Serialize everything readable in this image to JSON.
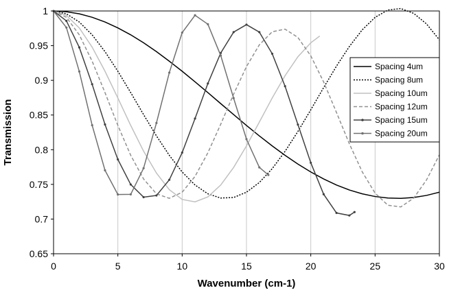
{
  "chart_data": {
    "type": "line",
    "title": "",
    "xlabel": "Wavenumber (cm-1)",
    "ylabel": "Transmission",
    "xlim": [
      0,
      30
    ],
    "ylim": [
      0.65,
      1
    ],
    "x_ticks": [
      0,
      5,
      10,
      15,
      20,
      25,
      30
    ],
    "x_tick_labels": [
      "0",
      "5",
      "10",
      "15",
      "20",
      "25",
      "30"
    ],
    "y_ticks": [
      0.65,
      0.7,
      0.75,
      0.8,
      0.85,
      0.9,
      0.95,
      1
    ],
    "y_tick_labels": [
      "0.65",
      "0.7",
      "0.75",
      "0.8",
      "0.85",
      "0.9",
      "0.95",
      "1"
    ],
    "grid": "vertical",
    "legend_position": "right",
    "series": [
      {
        "name": "Spacing 4um",
        "color": "#000000",
        "dash": "solid",
        "marker": "none",
        "x": [
          0,
          1,
          2,
          3,
          4,
          5,
          6,
          7,
          8,
          9,
          10,
          11,
          12,
          13,
          14,
          15,
          16,
          17,
          18,
          19,
          20,
          21,
          22,
          23,
          24,
          25,
          26,
          27,
          28,
          29,
          30
        ],
        "y": [
          1.0,
          0.9989,
          0.9959,
          0.9909,
          0.9841,
          0.9756,
          0.9656,
          0.9541,
          0.9414,
          0.9276,
          0.9131,
          0.8979,
          0.8823,
          0.8664,
          0.8506,
          0.835,
          0.8199,
          0.8055,
          0.7919,
          0.7793,
          0.7679,
          0.7578,
          0.7491,
          0.7419,
          0.7364,
          0.7325,
          0.7303,
          0.7299,
          0.7311,
          0.7341,
          0.7387
        ]
      },
      {
        "name": "Spacing 8um",
        "color": "#000000",
        "dash": "dotted",
        "marker": "none",
        "x": [
          0,
          1,
          2,
          3,
          4,
          5,
          6,
          7,
          8,
          9,
          10,
          11,
          12,
          13,
          14,
          15,
          16,
          17,
          18,
          19,
          20,
          21,
          22,
          23,
          24,
          25,
          26,
          27,
          28,
          29,
          30
        ],
        "y": [
          1.0,
          0.9959,
          0.9841,
          0.9656,
          0.9414,
          0.9131,
          0.8823,
          0.8506,
          0.8199,
          0.7919,
          0.7679,
          0.7491,
          0.7364,
          0.7303,
          0.7311,
          0.7387,
          0.7527,
          0.7726,
          0.7976,
          0.8263,
          0.8575,
          0.8895,
          0.9205,
          0.9488,
          0.9728,
          0.9908,
          1.0014,
          1.0035,
          0.9966,
          0.9813,
          0.9584
        ]
      },
      {
        "name": "Spacing 10um",
        "color": "#c0c0c0",
        "dash": "solid",
        "marker": "none",
        "x": [
          0,
          1,
          2,
          3,
          4,
          5,
          6,
          7,
          8,
          9,
          10,
          11,
          12,
          13,
          14,
          15,
          16,
          17,
          18,
          19,
          20,
          20.7
        ],
        "y": [
          1.0,
          0.9936,
          0.9756,
          0.9479,
          0.9131,
          0.8745,
          0.835,
          0.7979,
          0.7663,
          0.7424,
          0.7283,
          0.7248,
          0.732,
          0.7491,
          0.7744,
          0.8055,
          0.8398,
          0.8745,
          0.9067,
          0.934,
          0.9541,
          0.9639
        ]
      },
      {
        "name": "Spacing 12um",
        "color": "#909090",
        "dash": "dashed",
        "marker": "none",
        "x": [
          0,
          1,
          2,
          3,
          4,
          5,
          6,
          7,
          8,
          9,
          10,
          11,
          12,
          13,
          14,
          15,
          16,
          17,
          18,
          19,
          20,
          21,
          22,
          23,
          24,
          25,
          26,
          27,
          28,
          29,
          30
        ],
        "y": [
          1.0,
          0.9909,
          0.9656,
          0.9276,
          0.8823,
          0.835,
          0.7919,
          0.7578,
          0.7364,
          0.7299,
          0.7387,
          0.7615,
          0.7956,
          0.8368,
          0.88,
          0.9198,
          0.9512,
          0.97,
          0.9738,
          0.9618,
          0.9353,
          0.8977,
          0.8536,
          0.8085,
          0.7681,
          0.7374,
          0.7199,
          0.7175,
          0.7302,
          0.7564,
          0.7926
        ]
      },
      {
        "name": "Spacing 15um",
        "color": "#404040",
        "dash": "solid",
        "marker": "dot",
        "x": [
          0,
          1,
          2,
          3,
          4,
          5,
          6,
          7,
          8,
          9,
          10,
          11,
          12,
          13,
          14,
          15,
          16,
          17,
          18,
          19,
          20,
          21,
          22,
          23,
          23.4
        ],
        "y": [
          1.0,
          0.9857,
          0.9475,
          0.8944,
          0.8364,
          0.786,
          0.7498,
          0.7316,
          0.734,
          0.7566,
          0.7958,
          0.8449,
          0.8955,
          0.9395,
          0.9695,
          0.9803,
          0.9695,
          0.9384,
          0.8915,
          0.8362,
          0.7812,
          0.7358,
          0.7088,
          0.7052,
          0.7101
        ]
      },
      {
        "name": "Spacing 20um",
        "color": "#707070",
        "dash": "solid",
        "marker": "dot",
        "x": [
          0,
          1,
          2,
          3,
          4,
          5,
          6,
          7,
          8,
          9,
          10,
          11,
          12,
          13,
          14,
          15,
          16,
          16.7
        ],
        "y": [
          1.0,
          0.9761,
          0.9128,
          0.8353,
          0.7703,
          0.7354,
          0.7356,
          0.7733,
          0.8385,
          0.9111,
          0.9688,
          0.9938,
          0.9809,
          0.9357,
          0.8743,
          0.8152,
          0.7745,
          0.7636
        ]
      }
    ]
  }
}
